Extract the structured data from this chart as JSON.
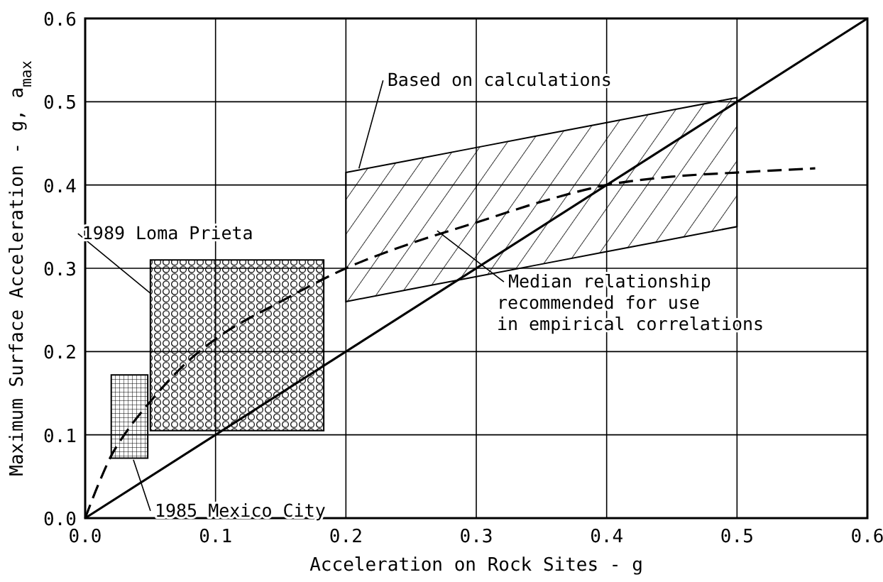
{
  "chart_data": {
    "type": "line",
    "xlabel": "Acceleration on Rock Sites - g",
    "ylabel": "Maximum Surface Acceleration - g, a$_{max}$",
    "xlim": [
      0,
      0.6
    ],
    "ylim": [
      0,
      0.6
    ],
    "xticks": [
      {
        "value": 0,
        "label": "0.0"
      },
      0.1,
      0.2,
      0.3,
      0.4,
      0.5,
      0.6
    ],
    "yticks": [
      {
        "value": 0,
        "label": "0.0"
      },
      0.1,
      0.2,
      0.3,
      0.4,
      0.5,
      0.6
    ],
    "grid": true,
    "series": [
      {
        "color": "#000000",
        "line_style": "solid",
        "x": [
          0,
          0.6
        ],
        "values": [
          0,
          0.6
        ]
      },
      {
        "color": "#000000",
        "line_style": "dashed",
        "x": [
          0,
          0.01,
          0.02,
          0.03,
          0.05,
          0.08,
          0.1,
          0.15,
          0.2,
          0.25,
          0.3,
          0.35,
          0.4,
          0.45,
          0.5,
          0.56
        ],
        "values": [
          0,
          0.04,
          0.075,
          0.1,
          0.14,
          0.19,
          0.215,
          0.26,
          0.3,
          0.33,
          0.355,
          0.38,
          0.4,
          0.41,
          0.415,
          0.42
        ],
        "lower": [
          null,
          null,
          null,
          null,
          null,
          null,
          null,
          null,
          0.26,
          0.275,
          0.29,
          0.305,
          0.32,
          0.335,
          0.35,
          null
        ],
        "upper": [
          null,
          null,
          null,
          null,
          null,
          null,
          null,
          null,
          0.415,
          0.43,
          0.445,
          0.46,
          0.475,
          0.49,
          0.505,
          null
        ]
      },
      {
        "type": "area",
        "color": "#000000",
        "x": [
          0.05,
          0.183
        ],
        "values": [
          null,
          null
        ],
        "lower": [
          0.105,
          0.105
        ],
        "upper": [
          0.31,
          0.31
        ]
      },
      {
        "type": "area",
        "color": "#000000",
        "x": [
          0.02,
          0.048
        ],
        "values": [
          null,
          null
        ],
        "lower": [
          0.072,
          0.072
        ],
        "upper": [
          0.172,
          0.172
        ]
      }
    ],
    "annotations": [
      {
        "text": "Based on calculations",
        "x": 0.21,
        "y": 0.42
      },
      {
        "text": "1989 Loma Prieta",
        "x": 0.05,
        "y": 0.27
      },
      {
        "text": "1985 Mexico City",
        "x": 0.037,
        "y": 0.07
      },
      {
        "text": "Median relationship\nrecommended for use\nin empirical correlations",
        "x": 0.27,
        "y": 0.345
      }
    ]
  }
}
